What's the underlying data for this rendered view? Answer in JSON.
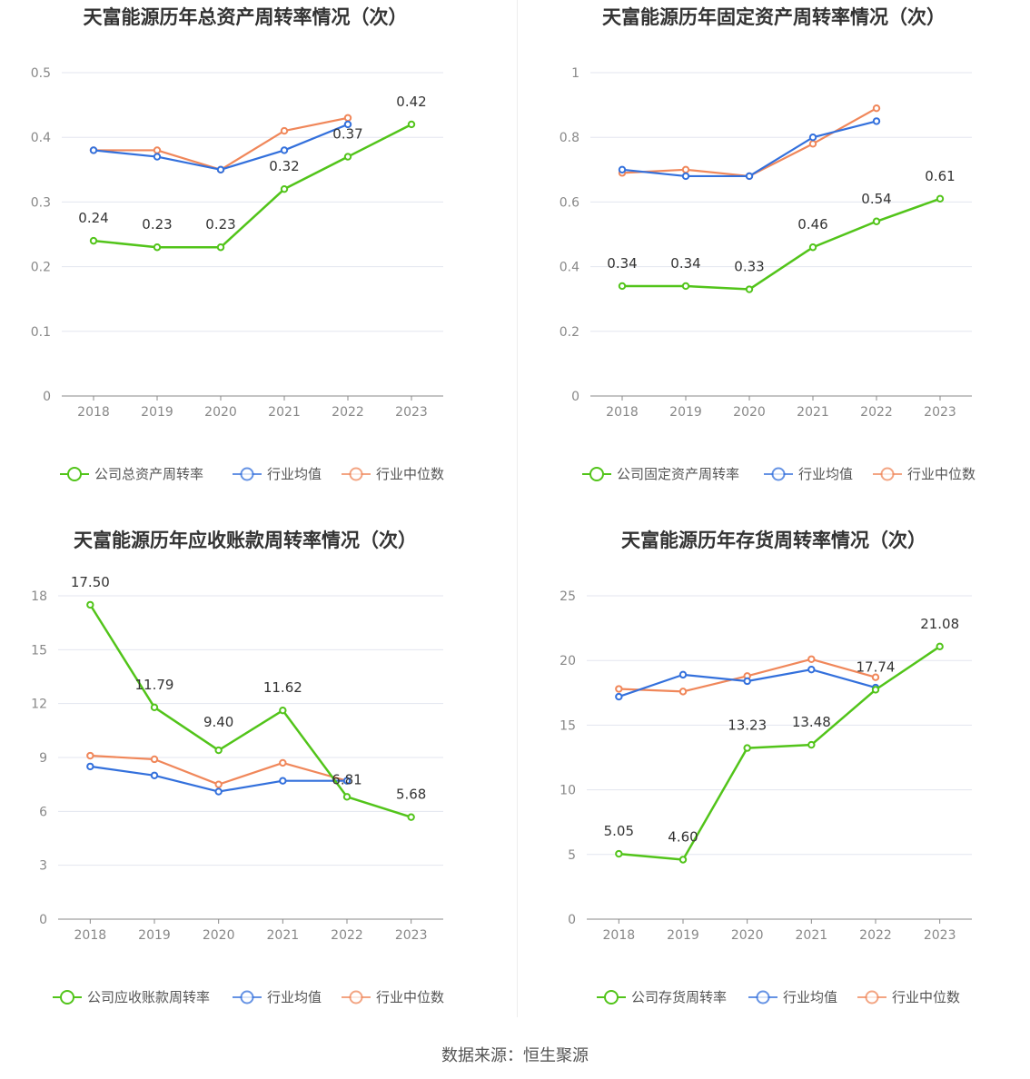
{
  "source": "数据来源：恒生聚源",
  "colors": {
    "company": "#52c41a",
    "average": "#3370dc",
    "median": "#f0875a",
    "grid": "#e3e6ef",
    "axis": "#888888"
  },
  "chart_data": [
    {
      "type": "line",
      "title": "天富能源历年总资产周转率情况（次）",
      "categories": [
        "2018",
        "2019",
        "2020",
        "2021",
        "2022",
        "2023"
      ],
      "ylim": [
        0,
        0.5
      ],
      "yticks": [
        "0",
        "0.1",
        "0.2",
        "0.3",
        "0.4",
        "0.5"
      ],
      "grid": true,
      "legend_position": "bottom",
      "series": [
        {
          "name": "公司总资产周转率",
          "values": [
            0.24,
            0.23,
            0.23,
            0.32,
            0.37,
            0.42
          ],
          "labels": [
            "0.24",
            "0.23",
            "0.23",
            "0.32",
            "0.37",
            "0.42"
          ]
        },
        {
          "name": "行业均值",
          "values": [
            0.38,
            0.37,
            0.35,
            0.38,
            0.42,
            null
          ]
        },
        {
          "name": "行业中位数",
          "values": [
            0.38,
            0.38,
            0.35,
            0.41,
            0.43,
            null
          ]
        }
      ]
    },
    {
      "type": "line",
      "title": "天富能源历年固定资产周转率情况（次）",
      "categories": [
        "2018",
        "2019",
        "2020",
        "2021",
        "2022",
        "2023"
      ],
      "ylim": [
        0,
        1
      ],
      "yticks": [
        "0",
        "0.2",
        "0.4",
        "0.6",
        "0.8",
        "1"
      ],
      "grid": true,
      "legend_position": "bottom",
      "series": [
        {
          "name": "公司固定资产周转率",
          "values": [
            0.34,
            0.34,
            0.33,
            0.46,
            0.54,
            0.61
          ],
          "labels": [
            "0.34",
            "0.34",
            "0.33",
            "0.46",
            "0.54",
            "0.61"
          ]
        },
        {
          "name": "行业均值",
          "values": [
            0.7,
            0.68,
            0.68,
            0.8,
            0.85,
            null
          ]
        },
        {
          "name": "行业中位数",
          "values": [
            0.69,
            0.7,
            0.68,
            0.78,
            0.89,
            null
          ]
        }
      ]
    },
    {
      "type": "line",
      "title": "天富能源历年应收账款周转率情况（次）",
      "categories": [
        "2018",
        "2019",
        "2020",
        "2021",
        "2022",
        "2023"
      ],
      "ylim": [
        0,
        18
      ],
      "yticks": [
        "0",
        "3",
        "6",
        "9",
        "12",
        "15",
        "18"
      ],
      "grid": true,
      "legend_position": "bottom",
      "series": [
        {
          "name": "公司应收账款周转率",
          "values": [
            17.5,
            11.79,
            9.4,
            11.62,
            6.81,
            5.68
          ],
          "labels": [
            "17.50",
            "11.79",
            "9.40",
            "11.62",
            "6.81",
            "5.68"
          ]
        },
        {
          "name": "行业均值",
          "values": [
            8.5,
            8.0,
            7.1,
            7.7,
            7.7,
            null
          ]
        },
        {
          "name": "行业中位数",
          "values": [
            9.1,
            8.9,
            7.5,
            8.7,
            7.7,
            null
          ]
        }
      ]
    },
    {
      "type": "line",
      "title": "天富能源历年存货周转率情况（次）",
      "categories": [
        "2018",
        "2019",
        "2020",
        "2021",
        "2022",
        "2023"
      ],
      "ylim": [
        0,
        25
      ],
      "yticks": [
        "0",
        "5",
        "10",
        "15",
        "20",
        "25"
      ],
      "grid": true,
      "legend_position": "bottom",
      "series": [
        {
          "name": "公司存货周转率",
          "values": [
            5.05,
            4.6,
            13.23,
            13.48,
            17.74,
            21.08
          ],
          "labels": [
            "5.05",
            "4.60",
            "13.23",
            "13.48",
            "17.74",
            "21.08"
          ]
        },
        {
          "name": "行业均值",
          "values": [
            17.2,
            18.9,
            18.4,
            19.3,
            17.9,
            null
          ]
        },
        {
          "name": "行业中位数",
          "values": [
            17.8,
            17.6,
            18.8,
            20.1,
            18.7,
            null
          ]
        }
      ]
    }
  ]
}
